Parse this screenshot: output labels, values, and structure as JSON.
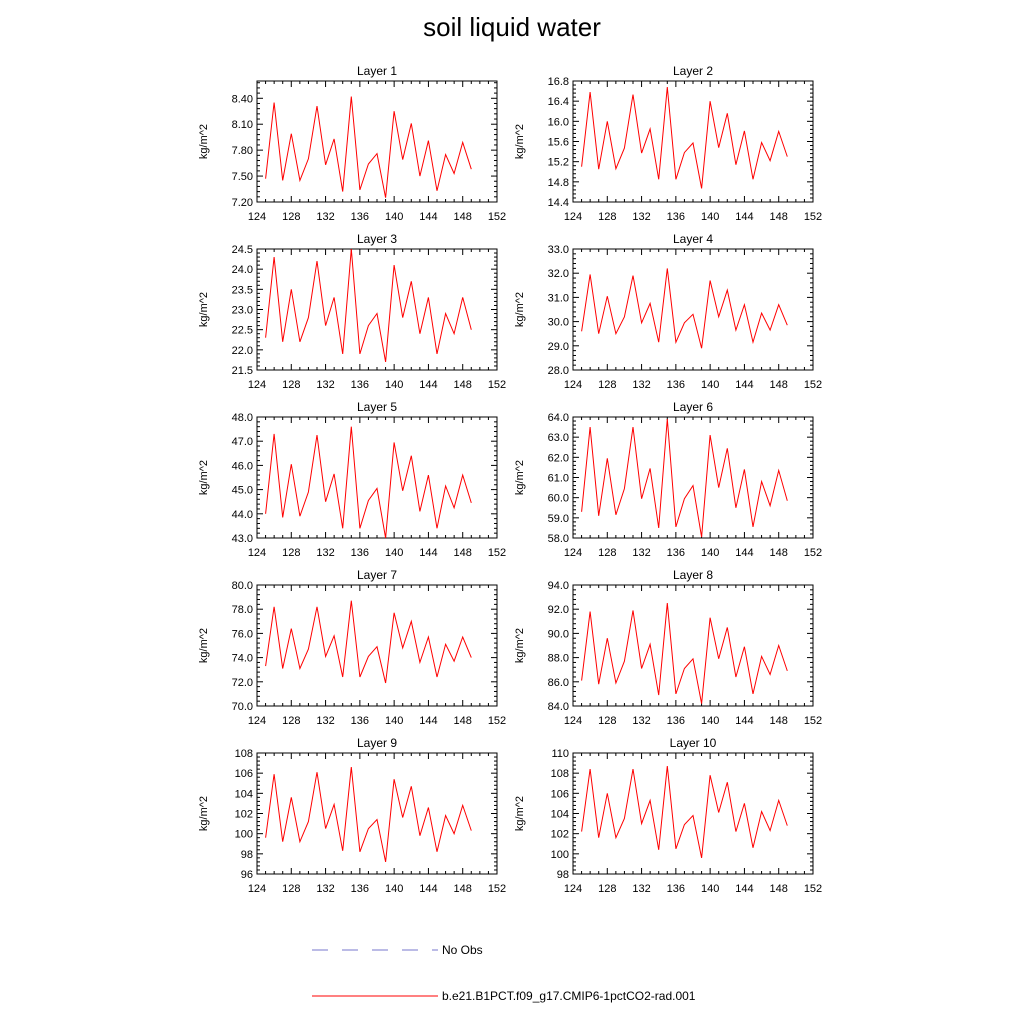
{
  "chart_data": {
    "type": "line",
    "title": "soil liquid water",
    "legend": {
      "placement": "bottom",
      "entries": [
        {
          "label": "No Obs",
          "color": "#7777cc",
          "style": "dashed"
        },
        {
          "label": "b.e21.B1PCT.f09_g17.CMIP6-1pctCO2-rad.001",
          "color": "#ff0000",
          "style": "solid"
        }
      ]
    },
    "x": [
      125,
      126,
      127,
      128,
      129,
      130,
      131,
      132,
      133,
      134,
      135,
      136,
      137,
      138,
      139,
      140,
      141,
      142,
      143,
      144,
      145,
      146,
      147,
      148,
      149
    ],
    "xlim": [
      124,
      152
    ],
    "xticks": [
      124,
      128,
      132,
      136,
      140,
      144,
      148,
      152
    ],
    "series_color": "#ff0000",
    "panels": [
      {
        "title": "Layer 1",
        "ylabel": "kg/m^2",
        "ylim": [
          7.2,
          8.6
        ],
        "yticks": [
          "7.20",
          "7.50",
          "7.80",
          "8.10",
          "8.40"
        ],
        "values": [
          7.47,
          8.35,
          7.45,
          7.99,
          7.45,
          7.7,
          8.31,
          7.63,
          7.93,
          7.32,
          8.42,
          7.34,
          7.64,
          7.76,
          7.25,
          8.25,
          7.69,
          8.11,
          7.5,
          7.91,
          7.33,
          7.75,
          7.53,
          7.89,
          7.58
        ]
      },
      {
        "title": "Layer 2",
        "ylabel": "kg/m^2",
        "ylim": [
          14.4,
          16.8
        ],
        "yticks": [
          "14.4",
          "14.8",
          "15.2",
          "15.6",
          "16.0",
          "16.4",
          "16.8"
        ],
        "values": [
          15.1,
          16.58,
          15.05,
          16.0,
          15.06,
          15.47,
          16.53,
          15.37,
          15.85,
          14.85,
          16.68,
          14.85,
          15.38,
          15.57,
          14.67,
          16.4,
          15.48,
          16.16,
          15.14,
          15.81,
          14.85,
          15.58,
          15.22,
          15.8,
          15.3
        ]
      },
      {
        "title": "Layer 3",
        "ylabel": "kg/m^2",
        "ylim": [
          21.5,
          24.5
        ],
        "yticks": [
          "21.5",
          "22.0",
          "22.5",
          "23.0",
          "23.5",
          "24.0",
          "24.5"
        ],
        "values": [
          22.3,
          24.3,
          22.2,
          23.5,
          22.2,
          22.8,
          24.2,
          22.6,
          23.3,
          21.9,
          24.5,
          21.9,
          22.6,
          22.9,
          21.7,
          24.1,
          22.8,
          23.7,
          22.4,
          23.3,
          21.9,
          22.9,
          22.4,
          23.3,
          22.5
        ]
      },
      {
        "title": "Layer 4",
        "ylabel": "kg/m^2",
        "ylim": [
          28.0,
          33.0
        ],
        "yticks": [
          "28.0",
          "29.0",
          "30.0",
          "31.0",
          "32.0",
          "33.0"
        ],
        "values": [
          29.6,
          31.95,
          29.5,
          31.05,
          29.5,
          30.2,
          31.9,
          29.95,
          30.75,
          29.15,
          32.2,
          29.15,
          29.95,
          30.3,
          28.9,
          31.7,
          30.2,
          31.3,
          29.65,
          30.7,
          29.15,
          30.35,
          29.65,
          30.7,
          29.85
        ]
      },
      {
        "title": "Layer 5",
        "ylabel": "kg/m^2",
        "ylim": [
          43.0,
          48.0
        ],
        "yticks": [
          "43.0",
          "44.0",
          "45.0",
          "46.0",
          "47.0",
          "48.0"
        ],
        "values": [
          44.0,
          47.3,
          43.85,
          46.05,
          43.9,
          44.9,
          47.25,
          44.5,
          45.65,
          43.4,
          47.6,
          43.4,
          44.55,
          45.05,
          43.0,
          46.95,
          44.95,
          46.4,
          44.1,
          45.6,
          43.4,
          45.15,
          44.25,
          45.6,
          44.45
        ]
      },
      {
        "title": "Layer 6",
        "ylabel": "kg/m^2",
        "ylim": [
          58.0,
          64.0
        ],
        "yticks": [
          "58.0",
          "59.0",
          "60.0",
          "61.0",
          "62.0",
          "63.0",
          "64.0"
        ],
        "values": [
          59.3,
          63.5,
          59.1,
          61.95,
          59.15,
          60.45,
          63.5,
          59.95,
          61.45,
          58.5,
          63.9,
          58.55,
          59.95,
          60.6,
          58.05,
          63.1,
          60.5,
          62.45,
          59.5,
          61.4,
          58.55,
          60.8,
          59.6,
          61.35,
          59.85
        ]
      },
      {
        "title": "Layer 7",
        "ylabel": "kg/m^2",
        "ylim": [
          70.0,
          80.0
        ],
        "yticks": [
          "70.0",
          "72.0",
          "74.0",
          "76.0",
          "78.0",
          "80.0"
        ],
        "values": [
          73.3,
          78.2,
          73.1,
          76.4,
          73.1,
          74.7,
          78.2,
          74.1,
          75.8,
          72.4,
          78.7,
          72.4,
          74.1,
          74.9,
          71.9,
          77.7,
          74.8,
          77.0,
          73.6,
          75.7,
          72.4,
          75.1,
          73.7,
          75.7,
          74.0
        ]
      },
      {
        "title": "Layer 8",
        "ylabel": "kg/m^2",
        "ylim": [
          84.0,
          94.0
        ],
        "yticks": [
          "84.0",
          "86.0",
          "88.0",
          "90.0",
          "92.0",
          "94.0"
        ],
        "values": [
          86.1,
          91.8,
          85.8,
          89.6,
          85.9,
          87.7,
          91.9,
          87.1,
          89.1,
          84.9,
          92.5,
          85.0,
          87.1,
          87.9,
          84.2,
          91.3,
          87.9,
          90.5,
          86.4,
          88.9,
          85.0,
          88.1,
          86.6,
          89.0,
          86.9
        ]
      },
      {
        "title": "Layer 9",
        "ylabel": "kg/m^2",
        "ylim": [
          96,
          108
        ],
        "yticks": [
          "96",
          "98",
          "100",
          "102",
          "104",
          "106",
          "108"
        ],
        "values": [
          99.6,
          105.9,
          99.2,
          103.6,
          99.2,
          101.2,
          106.1,
          100.5,
          102.9,
          98.3,
          106.6,
          98.2,
          100.5,
          101.4,
          97.2,
          105.4,
          101.6,
          104.7,
          99.8,
          102.6,
          98.2,
          101.8,
          100.0,
          102.8,
          100.3
        ]
      },
      {
        "title": "Layer 10",
        "ylabel": "kg/m^2",
        "ylim": [
          98,
          110
        ],
        "yticks": [
          "98",
          "100",
          "102",
          "104",
          "106",
          "108",
          "110"
        ],
        "values": [
          102.2,
          108.4,
          101.6,
          106.0,
          101.6,
          103.5,
          108.4,
          103.0,
          105.3,
          100.4,
          108.7,
          100.5,
          102.9,
          103.8,
          99.6,
          107.8,
          104.1,
          107.1,
          102.2,
          105.0,
          100.6,
          104.2,
          102.3,
          105.3,
          102.8
        ]
      }
    ]
  }
}
